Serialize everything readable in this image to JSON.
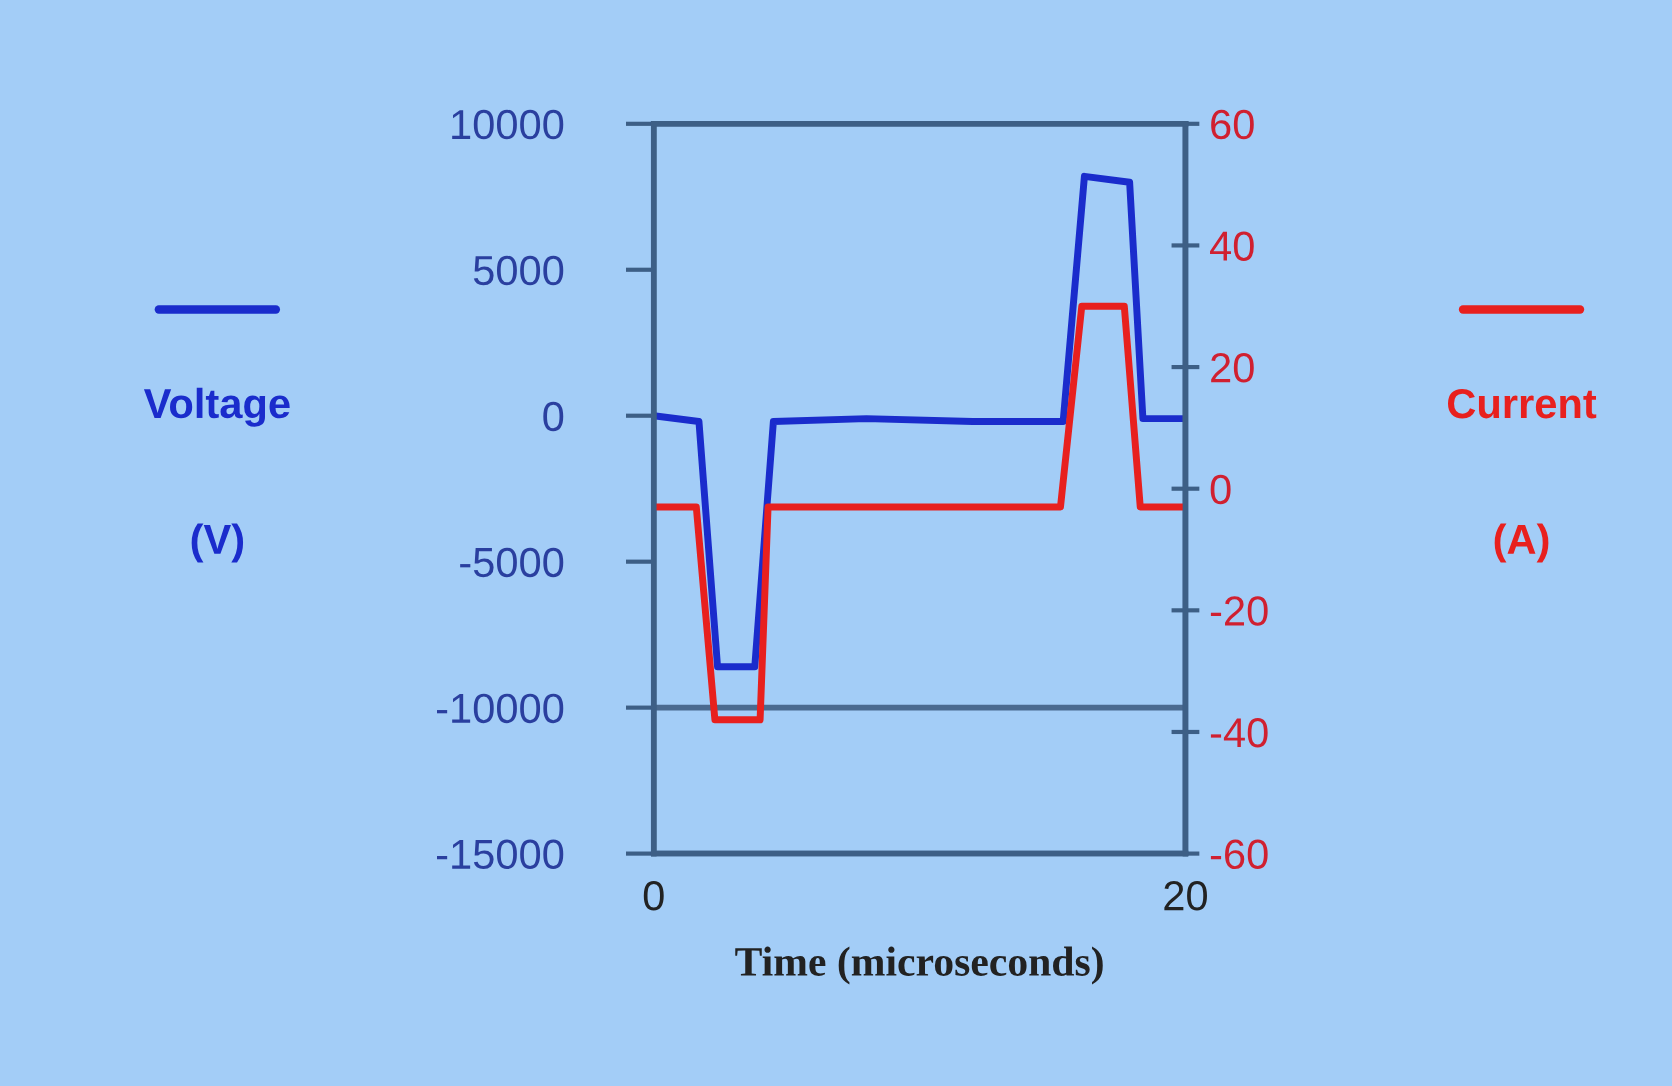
{
  "chart_data": {
    "type": "line",
    "xlabel": "Time (microseconds)",
    "annotations": [
      "(V)",
      "(A)"
    ],
    "xlim": [
      0,
      20
    ],
    "xticks": [
      0,
      20
    ],
    "ylim": [
      -15000,
      10000
    ],
    "yticks": [
      -15000,
      -10000,
      -5000,
      0,
      5000,
      10000
    ],
    "y2lim": [
      -60,
      60
    ],
    "y2ticks": [
      -60,
      -40,
      -20,
      0,
      20,
      40,
      60
    ],
    "grid": false,
    "marker": "none",
    "line_style": "solid",
    "ref_lines": [
      {
        "axis": "y",
        "value": -10000,
        "color": "#4a6a90"
      }
    ],
    "series": [
      {
        "name": "Voltage",
        "color": "#1a2ccc",
        "x": [
          0,
          1.7,
          2.4,
          3.8,
          4.5,
          8,
          12,
          15.4,
          16.2,
          17.9,
          18.4,
          20
        ],
        "values": [
          0,
          -200,
          -8600,
          -8600,
          -200,
          -100,
          -200,
          -200,
          8200,
          8000,
          -100,
          -100
        ]
      },
      {
        "name": "Current",
        "color": "#e8201e",
        "axis": "y2",
        "x": [
          0,
          1.6,
          2.3,
          4.0,
          4.3,
          8,
          12,
          15.3,
          16.1,
          17.7,
          18.3,
          20
        ],
        "values": [
          -3,
          -3,
          -38,
          -38,
          -3,
          -3,
          -3,
          -3,
          30,
          30,
          -3,
          -3
        ]
      }
    ]
  }
}
